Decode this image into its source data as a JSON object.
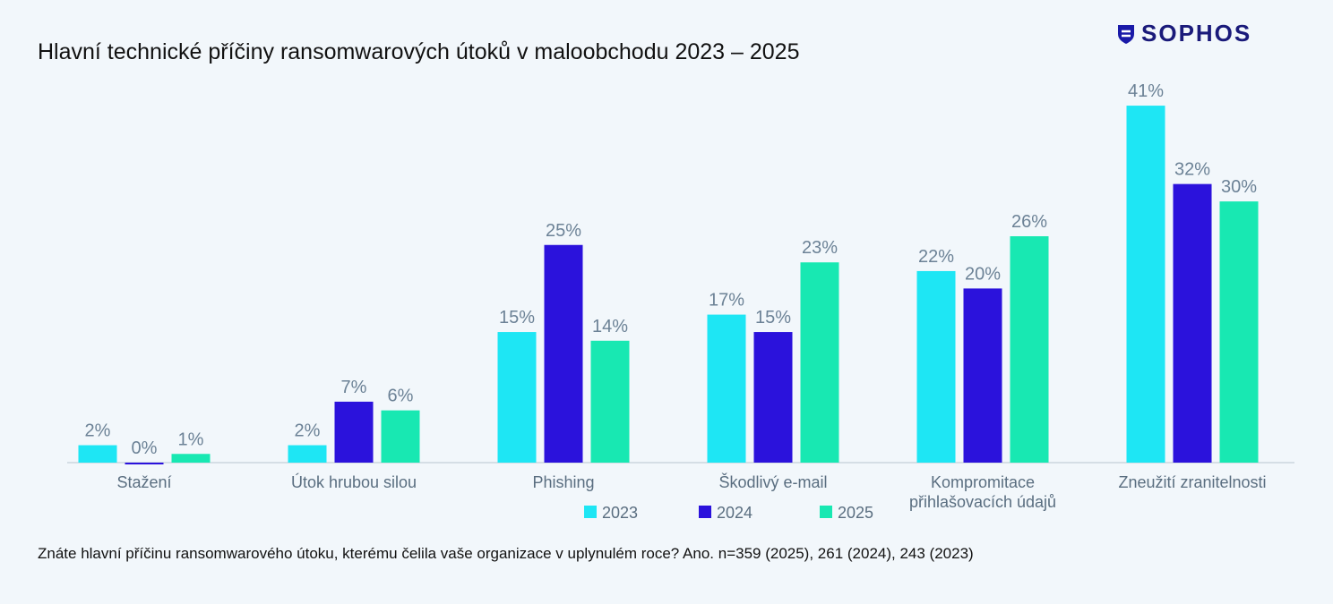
{
  "logo": "SOPHOS",
  "chart_data": {
    "type": "bar",
    "title": "Hlavní technické příčiny ransomwarových útoků v maloobchodu 2023 – 2025",
    "categories": [
      "Stažení",
      "Útok hrubou silou",
      "Phishing",
      "Škodlivý e-mail",
      "Kompromitace přihlašovacích údajů",
      "Zneužití zranitelnosti"
    ],
    "series": [
      {
        "name": "2023",
        "color": "#1ee6f4",
        "values": [
          2,
          2,
          15,
          17,
          22,
          41
        ],
        "value_labels": [
          "2%",
          "2%",
          "15%",
          "17%",
          "22%",
          "41%"
        ]
      },
      {
        "name": "2024",
        "color": "#2b12dc",
        "values": [
          0,
          7,
          25,
          15,
          20,
          32
        ],
        "value_labels": [
          "0%",
          "7%",
          "25%",
          "15%",
          "20%",
          "32%"
        ]
      },
      {
        "name": "2025",
        "color": "#18e8b2",
        "values": [
          1,
          6,
          14,
          23,
          26,
          30
        ],
        "value_labels": [
          "1%",
          "6%",
          "14%",
          "23%",
          "26%",
          "30%"
        ]
      }
    ],
    "footnote": "Znáte hlavní příčinu ransomwarového útoku, kterému čelila vaše organizace v uplynulém roce? Ano. n=359 (2025), 261 (2024), 243 (2023)"
  }
}
